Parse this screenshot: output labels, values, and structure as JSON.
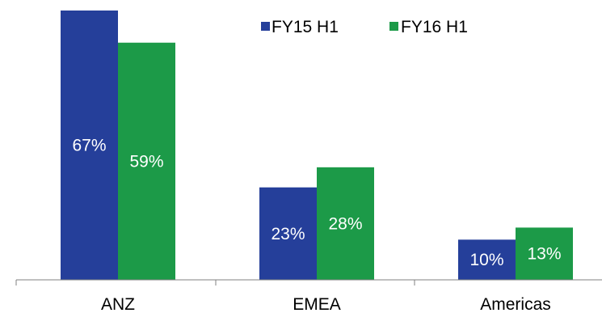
{
  "chart_data": {
    "type": "bar",
    "categories": [
      "ANZ",
      "EMEA",
      "Americas"
    ],
    "series": [
      {
        "name": "FY15 H1",
        "color": "#253f9a",
        "values": [
          67,
          23,
          10
        ],
        "labels": [
          "67%",
          "23%",
          "10%"
        ]
      },
      {
        "name": "FY16 H1",
        "color": "#1c9a48",
        "values": [
          59,
          28,
          13
        ],
        "labels": [
          "59%",
          "28%",
          "13%"
        ]
      }
    ],
    "title": "",
    "xlabel": "",
    "ylabel": "",
    "ylim": [
      0,
      67
    ],
    "grid": false,
    "legend": "top-right",
    "axis_color": "#808080"
  }
}
